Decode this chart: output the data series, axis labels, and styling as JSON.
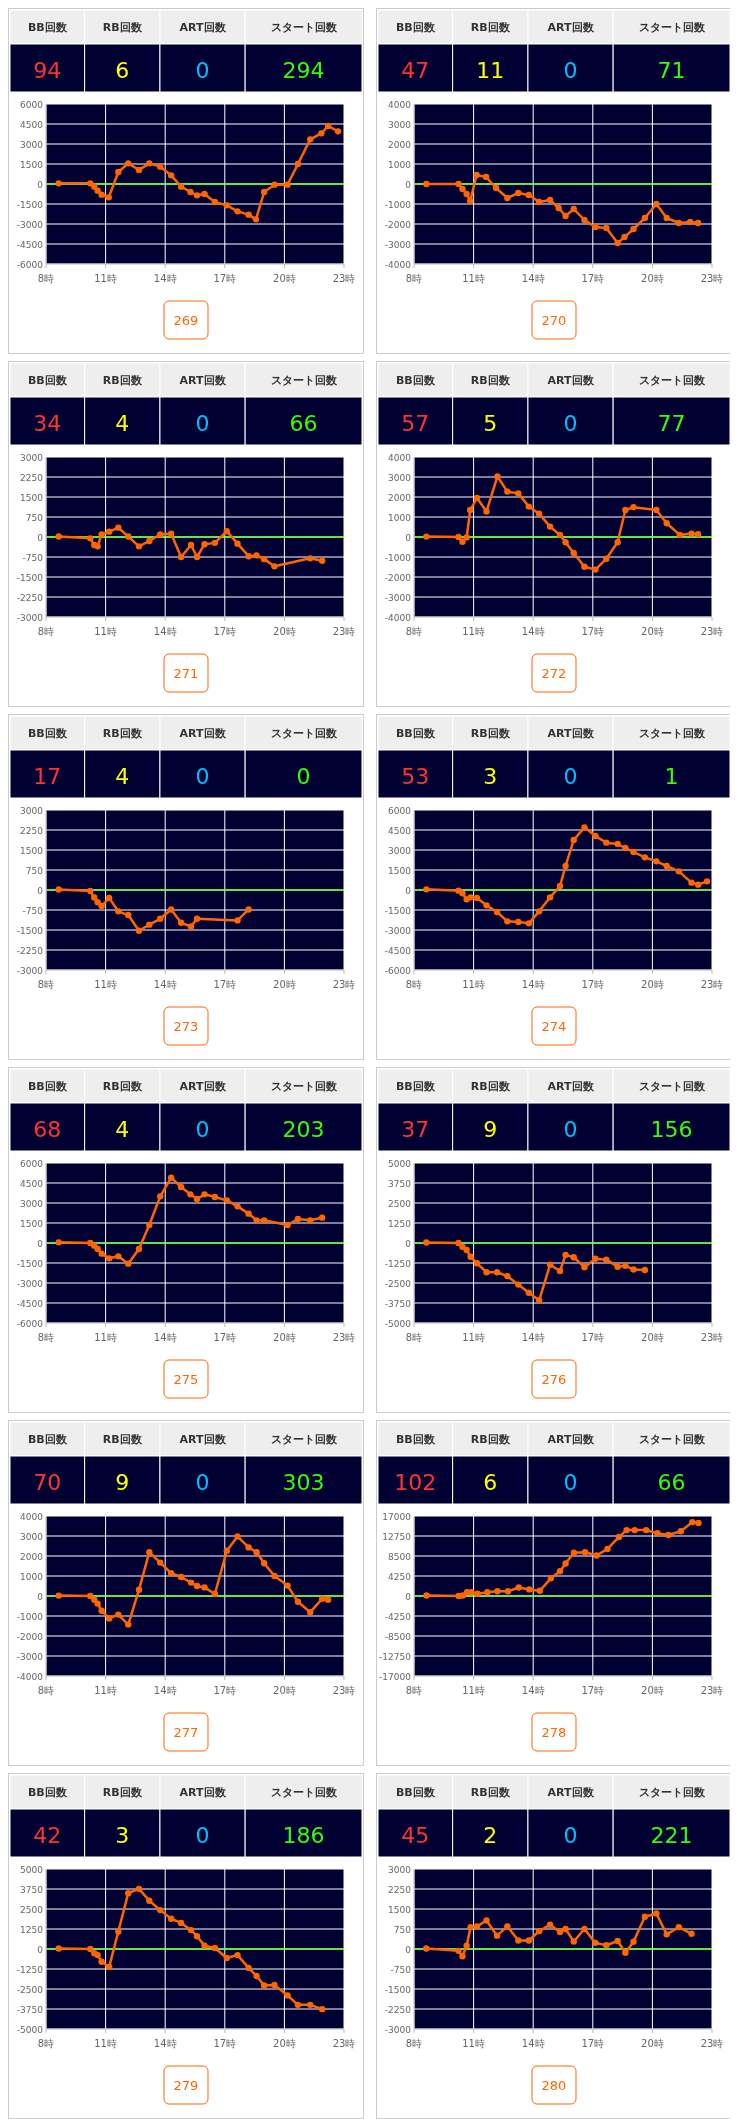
{
  "chart_data": [
    {
      "type": "other",
      "annotations": [
        "BB回数",
        "RB回数",
        "ART回数",
        "スタート回数",
        "94",
        "6",
        "0",
        "294"
      ]
    },
    {
      "type": "line",
      "x": [
        8.64,
        10.23,
        10.43,
        10.6,
        10.8,
        11.16,
        11.64,
        12.14,
        12.68,
        13.2,
        13.75,
        14.3,
        14.8,
        15.27,
        15.6,
        15.98,
        16.5,
        17.1,
        17.64,
        18.2,
        18.57,
        18.98,
        19.5,
        20.16,
        20.68,
        21.3,
        21.86,
        22.2,
        22.7
      ],
      "values": [
        50,
        50,
        -200,
        -500,
        -800,
        -1000,
        900,
        1550,
        1050,
        1550,
        1300,
        650,
        -200,
        -600,
        -850,
        -750,
        -1350,
        -1600,
        -2050,
        -2300,
        -2650,
        -600,
        -50,
        -50,
        1500,
        3350,
        3800,
        4350,
        3950
      ],
      "color": "#ff6600",
      "marker": "circle",
      "grid": true,
      "xlim": [
        8,
        23
      ],
      "xticks": [
        {
          "value": 8,
          "label": "8時"
        },
        {
          "value": 11,
          "label": "11時"
        },
        {
          "value": 14,
          "label": "14時"
        },
        {
          "value": 17,
          "label": "17時"
        },
        {
          "value": 20,
          "label": "20時"
        },
        {
          "value": 23,
          "label": "23時"
        }
      ],
      "ylim": [
        -6000,
        6000
      ],
      "yticks": [
        -6000,
        -4500,
        -3000,
        -1500,
        0,
        1500,
        3000,
        4500,
        6000
      ],
      "ref_lines": [
        {
          "axis": "y",
          "value": 0,
          "color": "#66ff33"
        }
      ],
      "annotations": [
        "269"
      ]
    },
    {
      "type": "other",
      "annotations": [
        "BB回数",
        "RB回数",
        "ART回数",
        "スタート回数",
        "47",
        "11",
        "0",
        "71"
      ]
    },
    {
      "type": "line",
      "x": [
        8.62,
        10.24,
        10.44,
        10.65,
        10.83,
        11.15,
        11.63,
        12.13,
        12.7,
        13.25,
        13.78,
        14.3,
        14.85,
        15.28,
        15.63,
        16.04,
        16.58,
        17.13,
        17.68,
        18.25,
        18.6,
        19.05,
        19.62,
        20.2,
        20.72,
        21.33,
        21.9,
        22.3
      ],
      "values": [
        0,
        0,
        -250,
        -500,
        -850,
        450,
        350,
        -200,
        -700,
        -450,
        -550,
        -900,
        -800,
        -1200,
        -1600,
        -1250,
        -1800,
        -2150,
        -2200,
        -2950,
        -2650,
        -2250,
        -1700,
        -1000,
        -1700,
        -1950,
        -1900,
        -1950
      ],
      "color": "#ff6600",
      "marker": "circle",
      "grid": true,
      "xlim": [
        8,
        23
      ],
      "xticks": [
        {
          "value": 8,
          "label": "8時"
        },
        {
          "value": 11,
          "label": "11時"
        },
        {
          "value": 14,
          "label": "14時"
        },
        {
          "value": 17,
          "label": "17時"
        },
        {
          "value": 20,
          "label": "20時"
        },
        {
          "value": 23,
          "label": "23時"
        }
      ],
      "ylim": [
        -4000,
        4000
      ],
      "yticks": [
        -4000,
        -3000,
        -2000,
        -1000,
        0,
        1000,
        2000,
        3000,
        4000
      ],
      "ref_lines": [
        {
          "axis": "y",
          "value": 0,
          "color": "#66ff33"
        }
      ],
      "annotations": [
        "270"
      ]
    },
    {
      "type": "other",
      "annotations": [
        "BB回数",
        "RB回数",
        "ART回数",
        "スタート回数",
        "34",
        "4",
        "0",
        "66"
      ]
    },
    {
      "type": "line",
      "x": [
        8.64,
        10.23,
        10.43,
        10.6,
        10.8,
        11.18,
        11.64,
        12.14,
        12.68,
        13.2,
        13.75,
        14.3,
        14.8,
        15.3,
        15.6,
        15.98,
        16.5,
        17.1,
        17.64,
        18.2,
        18.6,
        18.98,
        19.5,
        21.3,
        21.9
      ],
      "values": [
        20,
        -50,
        -300,
        -350,
        100,
        200,
        350,
        20,
        -350,
        -150,
        100,
        120,
        -750,
        -300,
        -750,
        -270,
        -220,
        220,
        -250,
        -720,
        -690,
        -830,
        -1100,
        -800,
        -890
      ],
      "color": "#ff6600",
      "marker": "circle",
      "grid": true,
      "xlim": [
        8,
        23
      ],
      "xticks": [
        {
          "value": 8,
          "label": "8時"
        },
        {
          "value": 11,
          "label": "11時"
        },
        {
          "value": 14,
          "label": "14時"
        },
        {
          "value": 17,
          "label": "17時"
        },
        {
          "value": 20,
          "label": "20時"
        },
        {
          "value": 23,
          "label": "23時"
        }
      ],
      "ylim": [
        -3000,
        3000
      ],
      "yticks": [
        -3000,
        -2250,
        -1500,
        -750,
        0,
        750,
        1500,
        2250,
        3000
      ],
      "ref_lines": [
        {
          "axis": "y",
          "value": 0,
          "color": "#66ff33"
        }
      ],
      "annotations": [
        "271"
      ]
    },
    {
      "type": "other",
      "annotations": [
        "BB回数",
        "RB回数",
        "ART回数",
        "スタート回数",
        "57",
        "5",
        "0",
        "77"
      ]
    },
    {
      "type": "line",
      "x": [
        8.62,
        10.24,
        10.44,
        10.65,
        10.83,
        11.17,
        11.65,
        12.2,
        12.7,
        13.25,
        13.78,
        14.3,
        14.85,
        15.35,
        15.63,
        16.04,
        16.58,
        17.13,
        17.68,
        18.25,
        18.64,
        19.05,
        20.2,
        20.72,
        21.38,
        21.97,
        22.3
      ],
      "values": [
        20,
        0,
        -240,
        -20,
        1350,
        1950,
        1280,
        3030,
        2270,
        2180,
        1520,
        1160,
        520,
        100,
        -260,
        -800,
        -1490,
        -1630,
        -1090,
        -260,
        1350,
        1490,
        1350,
        690,
        100,
        170,
        140
      ],
      "color": "#ff6600",
      "marker": "circle",
      "grid": true,
      "xlim": [
        8,
        23
      ],
      "xticks": [
        {
          "value": 8,
          "label": "8時"
        },
        {
          "value": 11,
          "label": "11時"
        },
        {
          "value": 14,
          "label": "14時"
        },
        {
          "value": 17,
          "label": "17時"
        },
        {
          "value": 20,
          "label": "20時"
        },
        {
          "value": 23,
          "label": "23時"
        }
      ],
      "ylim": [
        -4000,
        4000
      ],
      "yticks": [
        -4000,
        -3000,
        -2000,
        -1000,
        0,
        1000,
        2000,
        3000,
        4000
      ],
      "ref_lines": [
        {
          "axis": "y",
          "value": 0,
          "color": "#66ff33"
        }
      ],
      "annotations": [
        "272"
      ]
    },
    {
      "type": "other",
      "annotations": [
        "BB回数",
        "RB回数",
        "ART回数",
        "スタート回数",
        "17",
        "4",
        "0",
        "0"
      ]
    },
    {
      "type": "line",
      "x": [
        8.64,
        10.23,
        10.43,
        10.6,
        10.8,
        11.18,
        11.64,
        12.14,
        12.68,
        13.2,
        13.75,
        14.3,
        14.8,
        15.3,
        15.6,
        17.64,
        18.2
      ],
      "values": [
        20,
        -40,
        -280,
        -460,
        -600,
        -300,
        -800,
        -940,
        -1530,
        -1300,
        -1080,
        -730,
        -1230,
        -1370,
        -1080,
        -1140,
        -730
      ],
      "color": "#ff6600",
      "marker": "circle",
      "grid": true,
      "xlim": [
        8,
        23
      ],
      "xticks": [
        {
          "value": 8,
          "label": "8時"
        },
        {
          "value": 11,
          "label": "11時"
        },
        {
          "value": 14,
          "label": "14時"
        },
        {
          "value": 17,
          "label": "17時"
        },
        {
          "value": 20,
          "label": "20時"
        },
        {
          "value": 23,
          "label": "23時"
        }
      ],
      "ylim": [
        -3000,
        3000
      ],
      "yticks": [
        -3000,
        -2250,
        -1500,
        -750,
        0,
        750,
        1500,
        2250,
        3000
      ],
      "ref_lines": [
        {
          "axis": "y",
          "value": 0,
          "color": "#66ff33"
        }
      ],
      "annotations": [
        "273"
      ]
    },
    {
      "type": "other",
      "annotations": [
        "BB回数",
        "RB回数",
        "ART回数",
        "スタート回数",
        "53",
        "3",
        "0",
        "1"
      ]
    },
    {
      "type": "line",
      "x": [
        8.62,
        10.24,
        10.44,
        10.65,
        10.85,
        11.17,
        11.65,
        12.18,
        12.7,
        13.25,
        13.78,
        14.3,
        14.85,
        15.35,
        15.63,
        16.04,
        16.58,
        17.13,
        17.68,
        18.25,
        18.64,
        19.05,
        19.62,
        20.2,
        20.72,
        21.33,
        21.97,
        22.3,
        22.75
      ],
      "values": [
        50,
        -50,
        -250,
        -700,
        -550,
        -600,
        -1150,
        -1650,
        -2350,
        -2400,
        -2500,
        -1600,
        -550,
        300,
        1800,
        3750,
        4700,
        4050,
        3550,
        3450,
        3150,
        2850,
        2450,
        2150,
        1800,
        1400,
        550,
        400,
        650
      ],
      "color": "#ff6600",
      "marker": "circle",
      "grid": true,
      "xlim": [
        8,
        23
      ],
      "xticks": [
        {
          "value": 8,
          "label": "8時"
        },
        {
          "value": 11,
          "label": "11時"
        },
        {
          "value": 14,
          "label": "14時"
        },
        {
          "value": 17,
          "label": "17時"
        },
        {
          "value": 20,
          "label": "20時"
        },
        {
          "value": 23,
          "label": "23時"
        }
      ],
      "ylim": [
        -6000,
        6000
      ],
      "yticks": [
        -6000,
        -4500,
        -3000,
        -1500,
        0,
        1500,
        3000,
        4500,
        6000
      ],
      "ref_lines": [
        {
          "axis": "y",
          "value": 0,
          "color": "#66ff33"
        }
      ],
      "annotations": [
        "274"
      ]
    },
    {
      "type": "other",
      "annotations": [
        "BB回数",
        "RB回数",
        "ART回数",
        "スタート回数",
        "68",
        "4",
        "0",
        "203"
      ]
    },
    {
      "type": "line",
      "x": [
        8.64,
        10.23,
        10.43,
        10.6,
        10.8,
        11.18,
        11.64,
        12.14,
        12.68,
        13.2,
        13.75,
        14.3,
        14.8,
        15.27,
        15.6,
        15.98,
        16.5,
        17.1,
        17.64,
        18.2,
        18.6,
        18.98,
        20.16,
        20.68,
        21.3,
        21.9
      ],
      "values": [
        50,
        0,
        -200,
        -450,
        -800,
        -1150,
        -1000,
        -1550,
        -450,
        1350,
        3500,
        4900,
        4200,
        3650,
        3300,
        3650,
        3450,
        3200,
        2750,
        2200,
        1700,
        1700,
        1350,
        1800,
        1700,
        1900
      ],
      "color": "#ff6600",
      "marker": "circle",
      "grid": true,
      "xlim": [
        8,
        23
      ],
      "xticks": [
        {
          "value": 8,
          "label": "8時"
        },
        {
          "value": 11,
          "label": "11時"
        },
        {
          "value": 14,
          "label": "14時"
        },
        {
          "value": 17,
          "label": "17時"
        },
        {
          "value": 20,
          "label": "20時"
        },
        {
          "value": 23,
          "label": "23時"
        }
      ],
      "ylim": [
        -6000,
        6000
      ],
      "yticks": [
        -6000,
        -4500,
        -3000,
        -1500,
        0,
        1500,
        3000,
        4500,
        6000
      ],
      "ref_lines": [
        {
          "axis": "y",
          "value": 0,
          "color": "#66ff33"
        }
      ],
      "annotations": [
        "275"
      ]
    },
    {
      "type": "other",
      "annotations": [
        "BB回数",
        "RB回数",
        "ART回数",
        "スタート回数",
        "37",
        "9",
        "0",
        "156"
      ]
    },
    {
      "type": "line",
      "x": [
        8.62,
        10.24,
        10.44,
        10.65,
        10.85,
        11.17,
        11.65,
        12.18,
        12.7,
        13.25,
        13.78,
        14.3,
        14.85,
        15.35,
        15.63,
        16.04,
        16.58,
        17.13,
        17.68,
        18.25,
        18.64,
        19.05,
        19.62
      ],
      "values": [
        30,
        0,
        -240,
        -440,
        -860,
        -1270,
        -1830,
        -1830,
        -2070,
        -2600,
        -3110,
        -3580,
        -1360,
        -1750,
        -740,
        -890,
        -1510,
        -980,
        -1040,
        -1480,
        -1420,
        -1660,
        -1690
      ],
      "color": "#ff6600",
      "marker": "circle",
      "grid": true,
      "xlim": [
        8,
        23
      ],
      "xticks": [
        {
          "value": 8,
          "label": "8時"
        },
        {
          "value": 11,
          "label": "11時"
        },
        {
          "value": 14,
          "label": "14時"
        },
        {
          "value": 17,
          "label": "17時"
        },
        {
          "value": 20,
          "label": "20時"
        },
        {
          "value": 23,
          "label": "23時"
        }
      ],
      "ylim": [
        -5000,
        5000
      ],
      "yticks": [
        -5000,
        -3750,
        -2500,
        -1250,
        0,
        1250,
        2500,
        3750,
        5000
      ],
      "ref_lines": [
        {
          "axis": "y",
          "value": 0,
          "color": "#66ff33"
        }
      ],
      "annotations": [
        "276"
      ]
    },
    {
      "type": "other",
      "annotations": [
        "BB回数",
        "RB回数",
        "ART回数",
        "スタート回数",
        "70",
        "9",
        "0",
        "303"
      ]
    },
    {
      "type": "line",
      "x": [
        8.64,
        10.23,
        10.43,
        10.6,
        10.8,
        11.18,
        11.64,
        12.14,
        12.68,
        13.2,
        13.75,
        14.3,
        14.8,
        15.3,
        15.6,
        15.98,
        16.5,
        17.1,
        17.64,
        18.2,
        18.6,
        18.98,
        19.5,
        20.16,
        20.68,
        21.3,
        21.9,
        22.2
      ],
      "values": [
        20,
        0,
        -190,
        -380,
        -740,
        -1120,
        -930,
        -1430,
        310,
        2190,
        1670,
        1140,
        950,
        670,
        500,
        430,
        100,
        2260,
        2980,
        2430,
        2190,
        1640,
        1000,
        520,
        -290,
        -810,
        -140,
        -190
      ],
      "color": "#ff6600",
      "marker": "circle",
      "grid": true,
      "xlim": [
        8,
        23
      ],
      "xticks": [
        {
          "value": 8,
          "label": "8時"
        },
        {
          "value": 11,
          "label": "11時"
        },
        {
          "value": 14,
          "label": "14時"
        },
        {
          "value": 17,
          "label": "17時"
        },
        {
          "value": 20,
          "label": "20時"
        },
        {
          "value": 23,
          "label": "23時"
        }
      ],
      "ylim": [
        -4000,
        4000
      ],
      "yticks": [
        -4000,
        -3000,
        -2000,
        -1000,
        0,
        1000,
        2000,
        3000,
        4000
      ],
      "ref_lines": [
        {
          "axis": "y",
          "value": 0,
          "color": "#66ff33"
        }
      ],
      "annotations": [
        "277"
      ]
    },
    {
      "type": "other",
      "annotations": [
        "BB回数",
        "RB回数",
        "ART回数",
        "スタート回数",
        "102",
        "6",
        "0",
        "66"
      ]
    },
    {
      "type": "line",
      "x": [
        8.63,
        10.25,
        10.46,
        10.67,
        10.88,
        11.2,
        11.69,
        12.2,
        12.73,
        13.27,
        13.8,
        14.33,
        14.89,
        15.35,
        15.63,
        16.05,
        16.61,
        17.19,
        17.74,
        18.32,
        18.7,
        19.11,
        19.69,
        20.25,
        20.81,
        21.43,
        22.01,
        22.32
      ],
      "values": [
        100,
        0,
        100,
        800,
        800,
        500,
        800,
        1000,
        1000,
        1800,
        1400,
        1100,
        3750,
        5250,
        6900,
        9200,
        9300,
        8600,
        10000,
        12550,
        14000,
        14000,
        14000,
        13350,
        12950,
        13750,
        15700,
        15500
      ],
      "color": "#ff6600",
      "marker": "circle",
      "grid": true,
      "xlim": [
        8,
        23
      ],
      "xticks": [
        {
          "value": 8,
          "label": "8時"
        },
        {
          "value": 11,
          "label": "11時"
        },
        {
          "value": 14,
          "label": "14時"
        },
        {
          "value": 17,
          "label": "17時"
        },
        {
          "value": 20,
          "label": "20時"
        },
        {
          "value": 23,
          "label": "23時"
        }
      ],
      "ylim": [
        -17000,
        17000
      ],
      "yticks": [
        -17000,
        -12750,
        -8500,
        -4250,
        0,
        4250,
        8500,
        12750,
        17000
      ],
      "ref_lines": [
        {
          "axis": "y",
          "value": 0,
          "color": "#66ff33"
        }
      ],
      "annotations": [
        "278"
      ]
    },
    {
      "type": "other",
      "annotations": [
        "BB回数",
        "RB回数",
        "ART回数",
        "スタート回数",
        "42",
        "3",
        "0",
        "186"
      ]
    },
    {
      "type": "line",
      "x": [
        8.64,
        10.23,
        10.43,
        10.6,
        10.8,
        11.18,
        11.64,
        12.14,
        12.68,
        13.2,
        13.75,
        14.3,
        14.8,
        15.3,
        15.6,
        15.98,
        16.5,
        17.1,
        17.64,
        18.2,
        18.6,
        18.98,
        19.5,
        20.16,
        20.68,
        21.3,
        21.9
      ],
      "values": [
        30,
        0,
        -270,
        -380,
        -800,
        -1120,
        1090,
        3490,
        3760,
        3020,
        2430,
        1890,
        1630,
        1180,
        800,
        210,
        60,
        -560,
        -380,
        -1180,
        -1690,
        -2280,
        -2250,
        -2900,
        -3490,
        -3490,
        -3760
      ],
      "color": "#ff6600",
      "marker": "circle",
      "grid": true,
      "xlim": [
        8,
        23
      ],
      "xticks": [
        {
          "value": 8,
          "label": "8時"
        },
        {
          "value": 11,
          "label": "11時"
        },
        {
          "value": 14,
          "label": "14時"
        },
        {
          "value": 17,
          "label": "17時"
        },
        {
          "value": 20,
          "label": "20時"
        },
        {
          "value": 23,
          "label": "23時"
        }
      ],
      "ylim": [
        -5000,
        5000
      ],
      "yticks": [
        -5000,
        -3750,
        -2500,
        -1250,
        0,
        1250,
        2500,
        3750,
        5000
      ],
      "ref_lines": [
        {
          "axis": "y",
          "value": 0,
          "color": "#66ff33"
        }
      ],
      "annotations": [
        "279"
      ]
    },
    {
      "type": "other",
      "annotations": [
        "BB回数",
        "RB回数",
        "ART回数",
        "スタート回数",
        "45",
        "2",
        "0",
        "221"
      ]
    },
    {
      "type": "line",
      "x": [
        8.62,
        10.24,
        10.44,
        10.65,
        10.85,
        11.17,
        11.65,
        12.18,
        12.7,
        13.25,
        13.78,
        14.3,
        14.85,
        15.35,
        15.63,
        16.04,
        16.58,
        17.13,
        17.68,
        18.25,
        18.64,
        19.05,
        19.62,
        20.2,
        20.72,
        21.33,
        21.97
      ],
      "values": [
        20,
        -70,
        -270,
        120,
        820,
        850,
        1070,
        500,
        850,
        320,
        320,
        670,
        910,
        640,
        750,
        280,
        750,
        230,
        140,
        300,
        -140,
        270,
        1210,
        1330,
        550,
        820,
        570
      ],
      "color": "#ff6600",
      "marker": "circle",
      "grid": true,
      "xlim": [
        8,
        23
      ],
      "xticks": [
        {
          "value": 8,
          "label": "8時"
        },
        {
          "value": 11,
          "label": "11時"
        },
        {
          "value": 14,
          "label": "14時"
        },
        {
          "value": 17,
          "label": "17時"
        },
        {
          "value": 20,
          "label": "20時"
        },
        {
          "value": 23,
          "label": "23時"
        }
      ],
      "ylim": [
        -3000,
        3000
      ],
      "yticks": [
        -3000,
        -2250,
        -1500,
        -750,
        0,
        750,
        1500,
        2250,
        3000
      ],
      "ref_lines": [
        {
          "axis": "y",
          "value": 0,
          "color": "#66ff33"
        }
      ],
      "annotations": [
        "280"
      ]
    }
  ]
}
